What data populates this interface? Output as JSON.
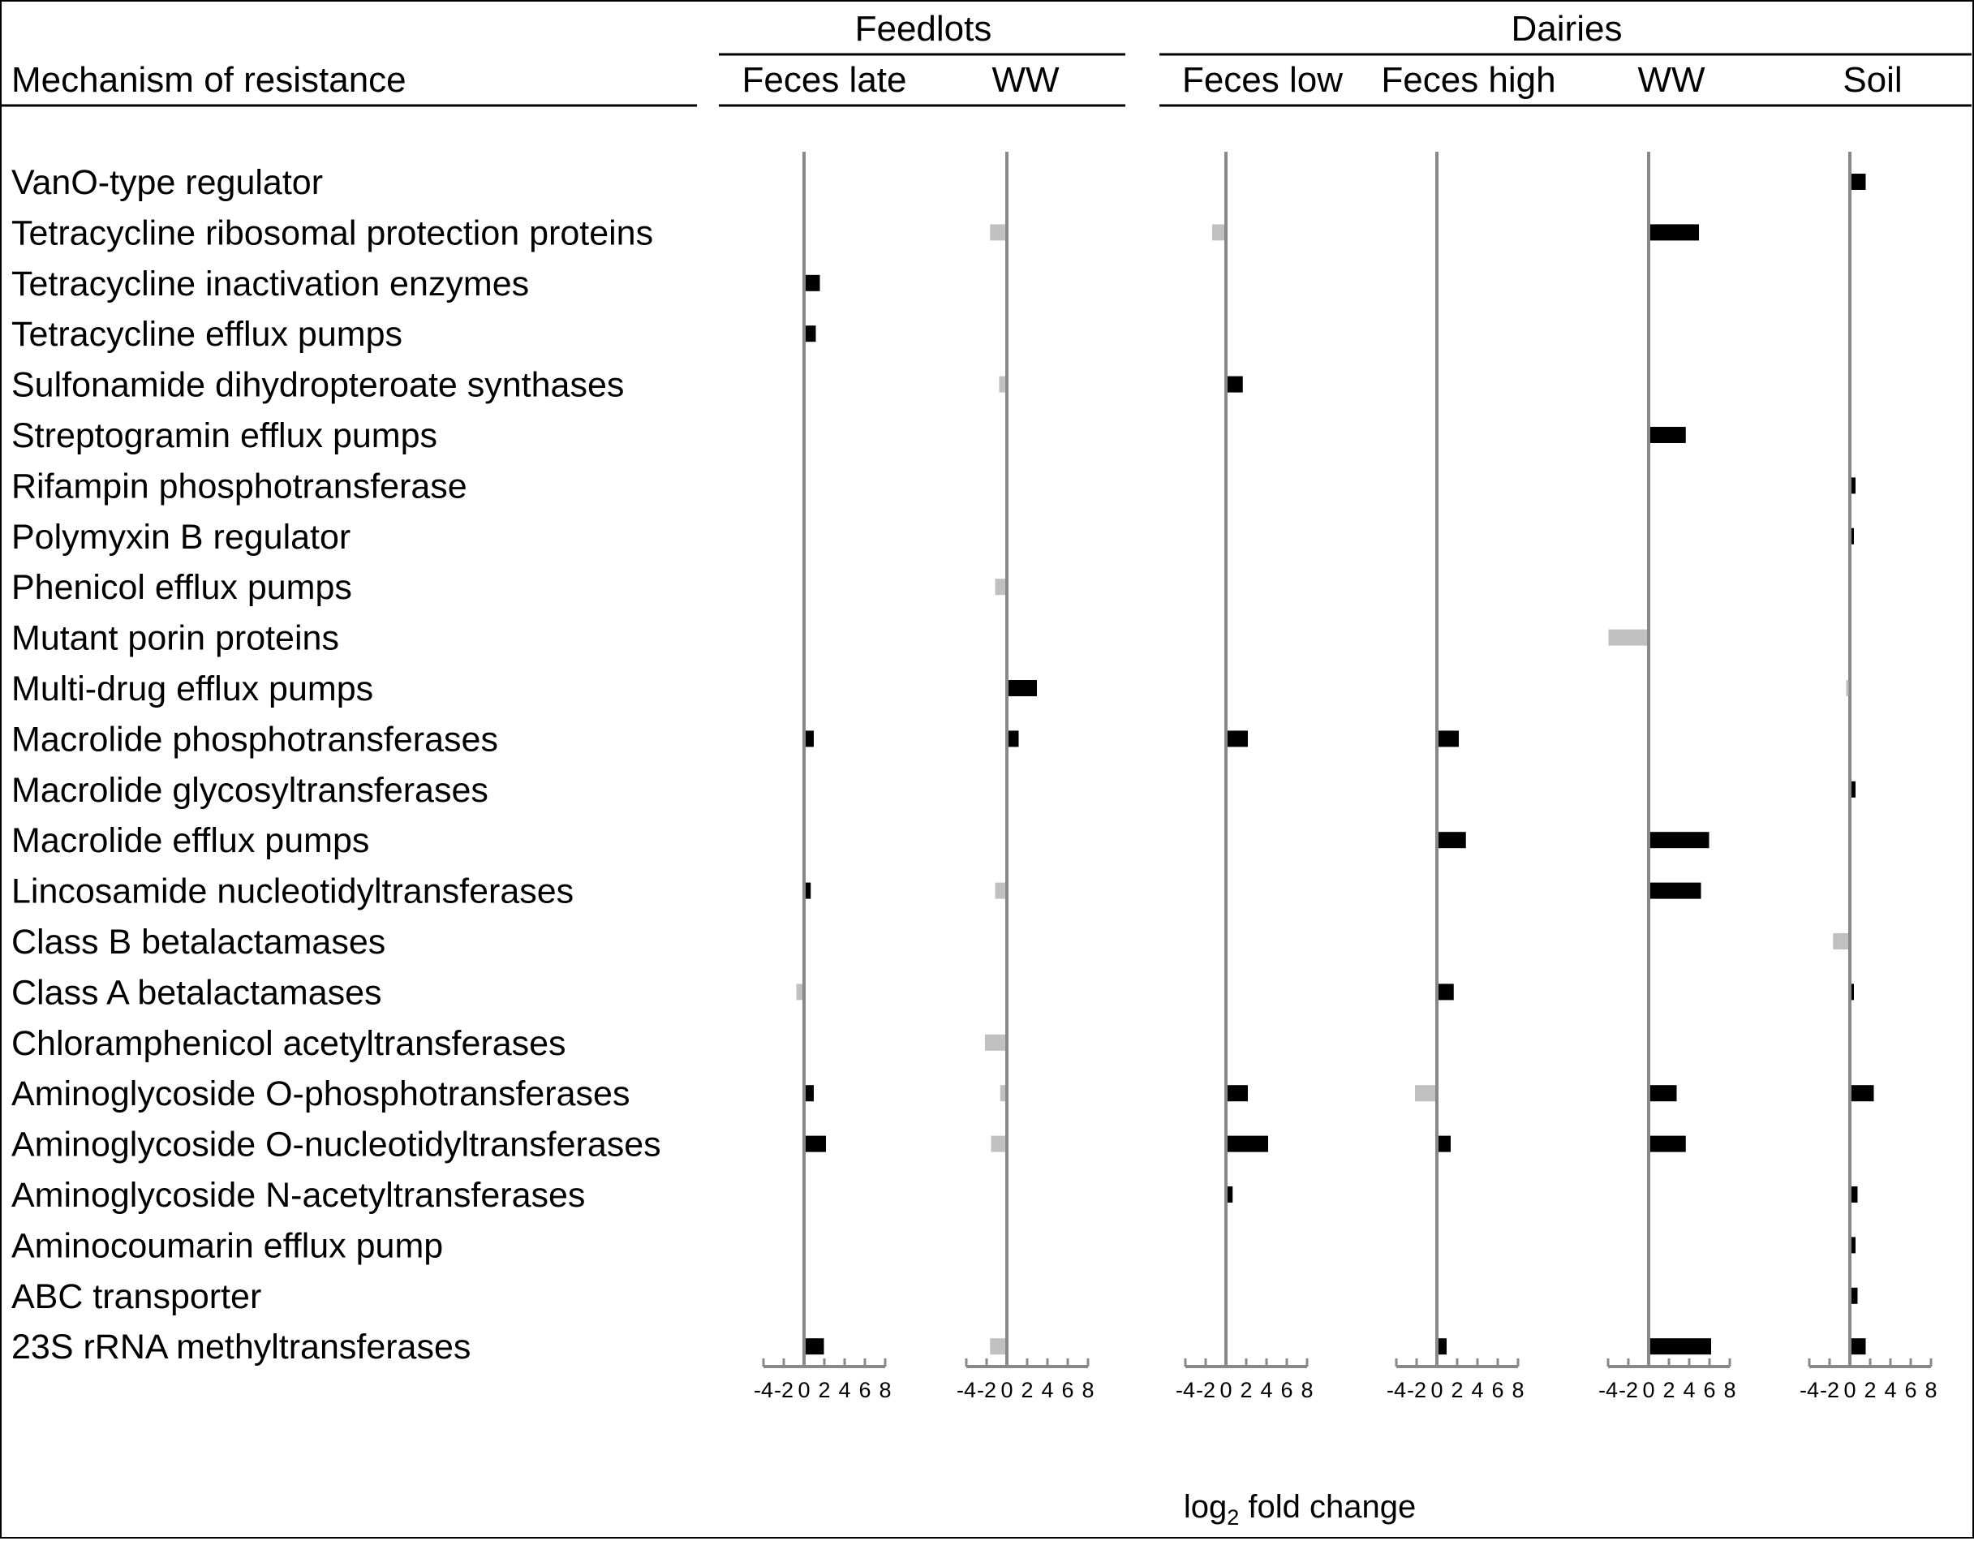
{
  "chart_data": {
    "type": "bar",
    "orientation": "horizontal",
    "header": {
      "row_label_header": "Mechanism of resistance",
      "groups": [
        {
          "name": "Feedlots",
          "panels": [
            "Feces late",
            "WW"
          ]
        },
        {
          "name": "Dairies",
          "panels": [
            "Feces low",
            "Feces high",
            "WW",
            "Soil"
          ]
        }
      ]
    },
    "categories": [
      "VanO-type regulator",
      "Tetracycline ribosomal protection proteins",
      "Tetracycline inactivation enzymes",
      "Tetracycline efflux pumps",
      "Sulfonamide dihydropteroate synthases",
      "Streptogramin efflux pumps",
      "Rifampin phosphotransferase",
      "Polymyxin B regulator",
      "Phenicol efflux pumps",
      "Mutant porin proteins",
      "Multi-drug efflux pumps",
      "Macrolide phosphotransferases",
      "Macrolide glycosyltransferases",
      "Macrolide efflux pumps",
      "Lincosamide nucleotidyltransferases",
      "Class B betalactamases",
      "Class A betalactamases",
      "Chloramphenicol acetyltransferases",
      "Aminoglycoside O-phosphotransferases",
      "Aminoglycoside O-nucleotidyltransferases",
      "Aminoglycoside N-acetyltransferases",
      "Aminocoumarin efflux pump",
      "ABC transporter",
      "23S rRNA methyltransferases"
    ],
    "series": [
      {
        "group": "Feedlots",
        "name": "Feces late",
        "values": [
          null,
          null,
          1.4,
          1.0,
          null,
          null,
          null,
          null,
          null,
          null,
          null,
          0.8,
          null,
          null,
          0.5,
          null,
          -0.6,
          null,
          0.8,
          2.0,
          null,
          null,
          null,
          1.8
        ]
      },
      {
        "group": "Feedlots",
        "name": "WW",
        "values": [
          null,
          -1.5,
          null,
          null,
          -0.6,
          null,
          null,
          null,
          -1.0,
          null,
          2.8,
          1.0,
          null,
          null,
          -1.0,
          null,
          null,
          -2.0,
          -0.5,
          -1.4,
          null,
          null,
          null,
          -1.5
        ]
      },
      {
        "group": "Dairies",
        "name": "Feces low",
        "values": [
          null,
          -1.2,
          null,
          null,
          1.5,
          null,
          null,
          null,
          null,
          null,
          null,
          2.0,
          null,
          null,
          null,
          null,
          null,
          null,
          2.0,
          4.0,
          0.5,
          null,
          null,
          null
        ]
      },
      {
        "group": "Dairies",
        "name": "Feces high",
        "values": [
          null,
          null,
          null,
          null,
          null,
          null,
          null,
          null,
          null,
          null,
          null,
          2.0,
          null,
          2.7,
          null,
          null,
          1.5,
          null,
          -2.0,
          1.2,
          null,
          null,
          null,
          0.8
        ]
      },
      {
        "group": "Dairies",
        "name": "WW",
        "values": [
          null,
          4.8,
          null,
          null,
          null,
          3.5,
          null,
          null,
          null,
          -3.8,
          null,
          null,
          null,
          5.8,
          5.0,
          null,
          null,
          null,
          2.6,
          3.5,
          null,
          null,
          null,
          6.0
        ]
      },
      {
        "group": "Dairies",
        "name": "Soil",
        "values": [
          1.4,
          null,
          null,
          null,
          null,
          null,
          0.4,
          0.2,
          null,
          null,
          -0.2,
          null,
          0.4,
          null,
          null,
          -1.5,
          0.2,
          null,
          2.2,
          null,
          0.6,
          0.4,
          0.6,
          1.4
        ]
      }
    ],
    "colors": {
      "increase": "#000000",
      "decrease": "#c0c0c0",
      "axis": "#888888"
    },
    "xlim": [
      -4,
      8
    ],
    "xticks": [
      "-4",
      "-2",
      "0",
      "2",
      "4",
      "6",
      "8"
    ],
    "xlabel_main": "log",
    "xlabel_sub": "2",
    "xlabel_rest": " fold change",
    "grid": false,
    "legend": "none"
  }
}
